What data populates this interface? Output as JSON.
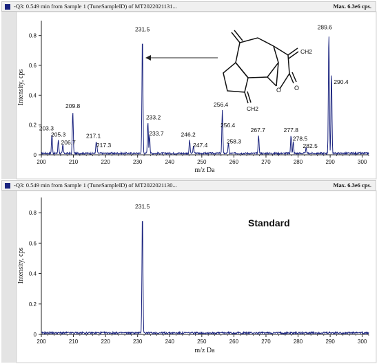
{
  "chart_data": [
    {
      "type": "line",
      "header": "-Q3: 0.549 min from Sample 1 (TuneSampleID) of MT2022021131...",
      "max_label": "Max. 6.3e6 cps.",
      "xlabel": "m/z Da",
      "ylabel": "Intensity, cps",
      "xlim": [
        200,
        302
      ],
      "ylim": [
        0,
        0.9
      ],
      "x_ticks": [
        200,
        210,
        220,
        230,
        240,
        250,
        260,
        270,
        280,
        290,
        300
      ],
      "y_ticks": [
        0,
        0.2,
        0.4,
        0.6,
        0.8
      ],
      "peaks": [
        {
          "x": 203.3,
          "y": 0.14,
          "label": "203.3"
        },
        {
          "x": 205.3,
          "y": 0.1,
          "label": "205.3"
        },
        {
          "x": 206.7,
          "y": 0.07,
          "label": "206.7"
        },
        {
          "x": 209.8,
          "y": 0.29,
          "label": "209.8"
        },
        {
          "x": 217.1,
          "y": 0.09,
          "label": "217.1"
        },
        {
          "x": 217.3,
          "y": 0.06,
          "label": "217.3"
        },
        {
          "x": 231.5,
          "y": 0.8,
          "label": "231.5"
        },
        {
          "x": 233.2,
          "y": 0.22,
          "label": "233.2"
        },
        {
          "x": 233.7,
          "y": 0.13,
          "label": "233.7"
        },
        {
          "x": 246.2,
          "y": 0.1,
          "label": "246.2"
        },
        {
          "x": 247.4,
          "y": 0.06,
          "label": "247.4"
        },
        {
          "x": 256.4,
          "y": 0.3,
          "label": "256.4"
        },
        {
          "x": 256.4,
          "y": 0.17,
          "label": "256.4"
        },
        {
          "x": 258.3,
          "y": 0.08,
          "label": "258.3"
        },
        {
          "x": 267.7,
          "y": 0.13,
          "label": "267.7"
        },
        {
          "x": 277.8,
          "y": 0.13,
          "label": "277.8"
        },
        {
          "x": 278.5,
          "y": 0.09,
          "label": "278.5"
        },
        {
          "x": 282.5,
          "y": 0.05,
          "label": "282.5"
        },
        {
          "x": 289.6,
          "y": 0.82,
          "label": "289.6"
        },
        {
          "x": 290.4,
          "y": 0.55,
          "label": "290.4"
        }
      ],
      "structure_labels": {
        "ch2_top": "CH2",
        "ch2_bottom": "CH2",
        "carbonyl_o": "O",
        "ring_o": "O"
      }
    },
    {
      "type": "line",
      "header": "-Q3: 0.549 min from Sample 1 (TuneSampleID) of MT2022021130...",
      "max_label": "Max. 6.3e6 cps.",
      "annotation": "Standard",
      "xlabel": "m/z Da",
      "ylabel": "Intensity, cps",
      "xlim": [
        200,
        302
      ],
      "ylim": [
        0,
        0.9
      ],
      "x_ticks": [
        200,
        210,
        220,
        230,
        240,
        250,
        260,
        270,
        280,
        290,
        300
      ],
      "y_ticks": [
        0,
        0.2,
        0.4,
        0.6,
        0.8
      ],
      "peaks": [
        {
          "x": 231.5,
          "y": 0.8,
          "label": "231.5"
        }
      ]
    }
  ]
}
